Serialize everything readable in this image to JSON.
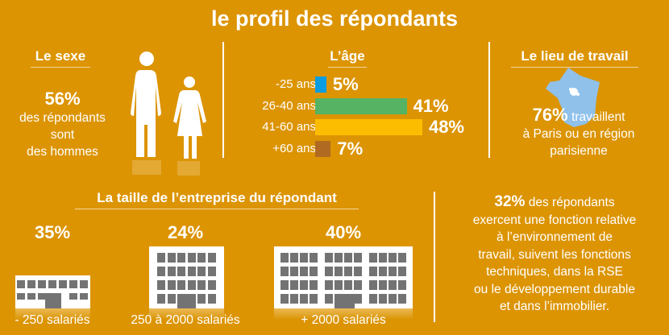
{
  "title": "le profil des répondants",
  "sexe": {
    "heading": "Le sexe",
    "value": "56%",
    "line1": "des répondants",
    "line2": "sont",
    "line3": "des hommes"
  },
  "age": {
    "heading": "L’âge"
  },
  "lieu": {
    "heading": "Le lieu de travail",
    "value": "76%",
    "line1": "travaillent",
    "line2": "à Paris ou en région",
    "line3": "parisienne",
    "map_color": "#8fc1eb"
  },
  "taille": {
    "heading": "La taille de l’entreprise du répondant",
    "items": [
      {
        "value": "35%",
        "label": "- 250 salariés"
      },
      {
        "value": "24%",
        "label": "250 à 2000 salariés"
      },
      {
        "value": "40%",
        "label": "+ 2000 salariés"
      }
    ]
  },
  "fonction": {
    "value": "32%",
    "line1": "des répondants",
    "line2": "exercent une fonction relative",
    "line3": "à l’environnement de",
    "line4": "travail, suivent les fonctions",
    "line5": "techniques, dans la RSE",
    "line6": "ou le développement durable",
    "line7": "et dans l’immobilier."
  },
  "chart_data": {
    "type": "bar",
    "title": "L’âge",
    "categories": [
      "-25 ans",
      "26-40 ans",
      "41-60 ans",
      "+60 ans"
    ],
    "values": [
      5,
      41,
      48,
      7
    ],
    "labels": [
      "5%",
      "41%",
      "48%",
      "7%"
    ],
    "colors": [
      "#0b9de0",
      "#55b363",
      "#fcbd00",
      "#b06a22"
    ],
    "unit": "%"
  }
}
